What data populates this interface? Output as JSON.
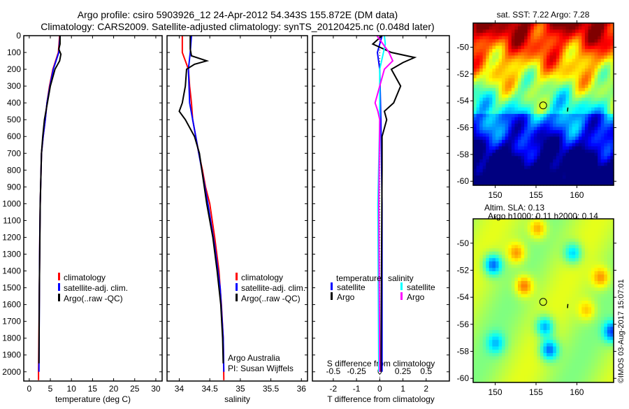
{
  "header": {
    "title_line1": "Argo profile: csiro 5903926_12 24-Apr-2012 54.343S 155.872E (DM data)",
    "title_line2": "Climatology: CARS2009. Satellite-adjusted climatology: synTS_20120425.nc (0.048d later)"
  },
  "colors": {
    "climatology": "#ff0000",
    "satellite": "#0000ff",
    "argo": "#000000",
    "sal_satellite": "#00ffff",
    "sal_argo": "#ff00ff"
  },
  "chart_data": [
    {
      "type": "line",
      "id": "temperature",
      "xlabel": "temperature (deg C)",
      "ylabel": "",
      "xlim": [
        -1.3,
        31.5
      ],
      "ylim": [
        2055,
        0
      ],
      "xticks": [
        "0",
        "5",
        "10",
        "15",
        "20",
        "25",
        "30"
      ],
      "yticks": [
        "0",
        "100",
        "200",
        "300",
        "400",
        "500",
        "600",
        "700",
        "800",
        "900",
        "1000",
        "1100",
        "1200",
        "1300",
        "1400",
        "1500",
        "1600",
        "1700",
        "1800",
        "1900",
        "2000"
      ],
      "legend": [
        "climatology",
        "satellite-adj. clim.",
        "Argo(..raw -QC)"
      ],
      "series": [
        {
          "name": "climatology",
          "color": "#ff0000",
          "points": [
            [
              7.2,
              0
            ],
            [
              6.9,
              100
            ],
            [
              5.6,
              200
            ],
            [
              4.8,
              300
            ],
            [
              4.2,
              400
            ],
            [
              3.8,
              500
            ],
            [
              3.3,
              600
            ],
            [
              2.9,
              700
            ],
            [
              2.8,
              800
            ],
            [
              2.6,
              1000
            ],
            [
              2.5,
              1200
            ],
            [
              2.4,
              1500
            ],
            [
              2.2,
              2000
            ],
            [
              2.2,
              2050
            ]
          ]
        },
        {
          "name": "satellite-adj. clim.",
          "color": "#0000ff",
          "points": [
            [
              7.3,
              0
            ],
            [
              7.0,
              100
            ],
            [
              5.7,
              200
            ],
            [
              4.9,
              300
            ],
            [
              4.2,
              400
            ],
            [
              3.8,
              500
            ],
            [
              3.3,
              600
            ],
            [
              2.9,
              700
            ],
            [
              2.8,
              800
            ],
            [
              2.6,
              1000
            ],
            [
              2.5,
              1200
            ],
            [
              2.4,
              1500
            ],
            [
              2.3,
              2000
            ]
          ]
        },
        {
          "name": "Argo(..raw -QC)",
          "color": "#000000",
          "points": [
            [
              7.3,
              0
            ],
            [
              7.3,
              50
            ],
            [
              7.0,
              80
            ],
            [
              7.5,
              110
            ],
            [
              7.2,
              150
            ],
            [
              6.1,
              200
            ],
            [
              5.0,
              300
            ],
            [
              4.3,
              400
            ],
            [
              3.6,
              500
            ],
            [
              3.2,
              600
            ],
            [
              2.9,
              700
            ],
            [
              2.6,
              1000
            ],
            [
              2.4,
              1500
            ],
            [
              2.3,
              1950
            ]
          ]
        }
      ]
    },
    {
      "type": "line",
      "id": "salinity",
      "xlabel": "salinity",
      "xlim": [
        33.8,
        36.1
      ],
      "ylim": [
        2055,
        0
      ],
      "xticks": [
        "34",
        "34.5",
        "35",
        "35.5",
        "36"
      ],
      "legend": [
        "climatology",
        "satellite-adj. clim.",
        "Argo(..raw -QC)"
      ],
      "annotation": [
        "Argo Australia",
        "PI: Susan Wijffels"
      ],
      "series": [
        {
          "name": "climatology",
          "color": "#ff0000",
          "points": [
            [
              34.05,
              0
            ],
            [
              34.05,
              100
            ],
            [
              34.1,
              150
            ],
            [
              34.15,
              200
            ],
            [
              34.17,
              300
            ],
            [
              34.2,
              400
            ],
            [
              34.22,
              500
            ],
            [
              34.27,
              600
            ],
            [
              34.32,
              700
            ],
            [
              34.38,
              800
            ],
            [
              34.43,
              900
            ],
            [
              34.5,
              1000
            ],
            [
              34.58,
              1200
            ],
            [
              34.65,
              1400
            ],
            [
              34.69,
              1600
            ],
            [
              34.72,
              1800
            ],
            [
              34.73,
              2050
            ]
          ]
        },
        {
          "name": "satellite-adj. clim.",
          "color": "#0000ff",
          "points": [
            [
              34.2,
              0
            ],
            [
              34.18,
              100
            ],
            [
              34.15,
              200
            ],
            [
              34.17,
              400
            ],
            [
              34.27,
              600
            ],
            [
              34.37,
              800
            ],
            [
              34.47,
              1000
            ],
            [
              34.58,
              1250
            ],
            [
              34.67,
              1500
            ],
            [
              34.72,
              1800
            ],
            [
              34.73,
              2000
            ]
          ]
        },
        {
          "name": "Argo(..raw -QC)",
          "color": "#000000",
          "points": [
            [
              34.18,
              0
            ],
            [
              34.18,
              80
            ],
            [
              34.2,
              120
            ],
            [
              34.45,
              150
            ],
            [
              34.25,
              170
            ],
            [
              34.12,
              200
            ],
            [
              34.1,
              300
            ],
            [
              34.05,
              400
            ],
            [
              34.0,
              450
            ],
            [
              34.1,
              500
            ],
            [
              34.25,
              600
            ],
            [
              34.33,
              700
            ],
            [
              34.37,
              800
            ],
            [
              34.45,
              1000
            ],
            [
              34.55,
              1200
            ],
            [
              34.62,
              1400
            ],
            [
              34.68,
              1600
            ],
            [
              34.71,
              1800
            ],
            [
              34.72,
              1950
            ]
          ]
        }
      ]
    },
    {
      "type": "line",
      "id": "difference",
      "xlabel": "T difference from climatology",
      "x2label": "S difference from climatology",
      "xlim": [
        -2.9,
        3.0
      ],
      "x2lim": [
        -0.725,
        0.75
      ],
      "ylim": [
        2055,
        0
      ],
      "xticks": [
        "-2",
        "-1",
        "0",
        "1",
        "2"
      ],
      "x2ticks": [
        "-0.5",
        "-0.25",
        "0",
        "0.25",
        "0.5"
      ],
      "legend_temperature": {
        "title": "temperature",
        "items": [
          "satellite",
          "Argo"
        ]
      },
      "legend_salinity": {
        "title": "salinity",
        "items": [
          "satellite",
          "Argo"
        ]
      },
      "series": [
        {
          "name": "T satellite",
          "axis": "T",
          "color": "#0000ff",
          "points": [
            [
              0.1,
              0
            ],
            [
              -0.1,
              100
            ],
            [
              0.0,
              200
            ],
            [
              0.05,
              500
            ],
            [
              0.1,
              1000
            ],
            [
              0.1,
              2000
            ]
          ]
        },
        {
          "name": "T Argo",
          "axis": "T",
          "color": "#000000",
          "points": [
            [
              0.1,
              0
            ],
            [
              -0.3,
              50
            ],
            [
              0.5,
              100
            ],
            [
              1.5,
              130
            ],
            [
              1.0,
              160
            ],
            [
              0.5,
              200
            ],
            [
              0.9,
              300
            ],
            [
              0.6,
              400
            ],
            [
              0.2,
              450
            ],
            [
              0.3,
              500
            ],
            [
              0.1,
              600
            ],
            [
              0.1,
              800
            ],
            [
              0.05,
              2000
            ]
          ]
        },
        {
          "name": "S satellite",
          "axis": "S",
          "color": "#00ffff",
          "points": [
            [
              0.05,
              0
            ],
            [
              0.06,
              50
            ],
            [
              0.04,
              100
            ],
            [
              0.0,
              200
            ],
            [
              0.0,
              500
            ],
            [
              -0.02,
              1000
            ],
            [
              -0.01,
              2000
            ]
          ]
        },
        {
          "name": "S Argo",
          "axis": "S",
          "color": "#ff00ff",
          "points": [
            [
              -0.03,
              0
            ],
            [
              0.1,
              100
            ],
            [
              0.14,
              150
            ],
            [
              0.05,
              200
            ],
            [
              -0.05,
              400
            ],
            [
              -0.02,
              450
            ],
            [
              0.0,
              500
            ],
            [
              -0.01,
              1000
            ],
            [
              0.0,
              2000
            ]
          ]
        }
      ]
    },
    {
      "type": "heatmap",
      "id": "sst_map",
      "title": "sat. SST: 7.22 Argo: 7.28",
      "xlim": [
        147.3,
        164.5
      ],
      "ylim": [
        -60.3,
        -48.2
      ],
      "xticks": [
        "150",
        "155",
        "160"
      ],
      "yticks": [
        "-50",
        "-52",
        "-54",
        "-56",
        "-58",
        "-60"
      ],
      "float_position": [
        155.872,
        -54.343
      ]
    },
    {
      "type": "heatmap",
      "id": "sla_map",
      "title_line1": "Altim. SLA: 0.13",
      "title_line2": "Argo h1000: 0.11 h2000: 0.14",
      "xlim": [
        147.3,
        164.5
      ],
      "ylim": [
        -60.3,
        -48.2
      ],
      "xticks": [
        "150",
        "155",
        "160"
      ],
      "yticks": [
        "-50",
        "-52",
        "-54",
        "-56",
        "-58",
        "-60"
      ],
      "float_position": [
        155.872,
        -54.343
      ]
    }
  ],
  "footer": {
    "copyright": "©IMOS 03-Aug-2017 15:07:01"
  }
}
